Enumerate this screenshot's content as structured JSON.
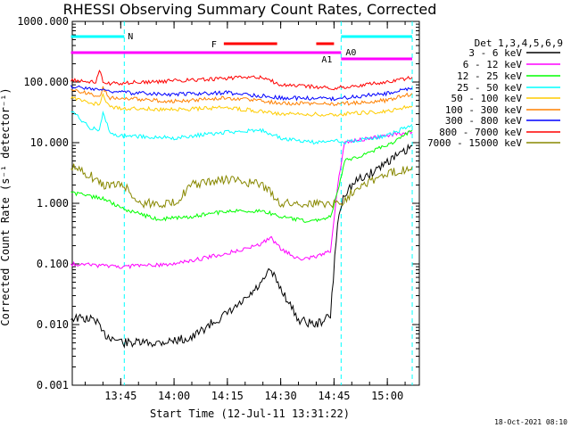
{
  "chart_data": {
    "type": "line",
    "title": "RHESSI Observing Summary Count Rates, Corrected",
    "xlabel": "Start Time (12-Jul-11 13:31:22)",
    "ylabel": "Corrected Count Rate (s⁻¹ detector⁻¹)",
    "ylim": [
      0.001,
      1000
    ],
    "y_scale": "log",
    "x_range": [
      "13:31:22",
      "15:09"
    ],
    "y_ticks": [
      "1000.000",
      "100.000",
      "10.000",
      "1.000",
      "0.100",
      "0.010",
      "0.001"
    ],
    "x_ticks": [
      "13:45",
      "14:00",
      "14:15",
      "14:30",
      "14:45",
      "15:00"
    ],
    "legend_title": "Det 1,3,4,5,6,9",
    "legend_position": "right",
    "series": [
      {
        "name": "3 - 6 keV",
        "color": "#000000",
        "x": [
          "13:31",
          "13:38",
          "13:40",
          "13:46",
          "13:55",
          "14:05",
          "14:10",
          "14:15",
          "14:20",
          "14:25",
          "14:27",
          "14:30",
          "14:35",
          "14:40",
          "14:44",
          "14:46",
          "14:48",
          "14:52",
          "14:55",
          "15:00",
          "15:05",
          "15:07"
        ],
        "values": [
          0.013,
          0.012,
          0.007,
          0.005,
          0.005,
          0.006,
          0.01,
          0.015,
          0.025,
          0.05,
          0.08,
          0.04,
          0.012,
          0.01,
          0.014,
          0.5,
          1.5,
          2.5,
          3,
          5,
          7,
          9
        ]
      },
      {
        "name": "6 - 12 keV",
        "color": "#ff00ff",
        "x": [
          "13:31",
          "13:45",
          "14:00",
          "14:10",
          "14:15",
          "14:20",
          "14:25",
          "14:27",
          "14:30",
          "14:35",
          "14:40",
          "14:44",
          "14:46",
          "14:48",
          "14:52",
          "15:00",
          "15:07"
        ],
        "values": [
          0.1,
          0.09,
          0.1,
          0.13,
          0.15,
          0.18,
          0.22,
          0.28,
          0.18,
          0.12,
          0.13,
          0.16,
          2,
          10,
          11,
          13,
          15
        ]
      },
      {
        "name": "12 - 25 keV",
        "color": "#00ff00",
        "x": [
          "13:31",
          "13:40",
          "13:46",
          "13:55",
          "14:05",
          "14:15",
          "14:25",
          "14:30",
          "14:38",
          "14:44",
          "14:46",
          "14:48",
          "14:52",
          "15:00",
          "15:07"
        ],
        "values": [
          1.5,
          1.2,
          0.8,
          0.55,
          0.6,
          0.75,
          0.75,
          0.6,
          0.5,
          0.6,
          1.5,
          5,
          6,
          9,
          16
        ]
      },
      {
        "name": "25 - 50 keV",
        "color": "#00ffff",
        "x": [
          "13:31",
          "13:36",
          "13:39",
          "13:40",
          "13:42",
          "13:45",
          "14:00",
          "14:15",
          "14:25",
          "14:30",
          "14:40",
          "14:45",
          "14:47",
          "15:00",
          "15:07"
        ],
        "values": [
          35,
          18,
          16,
          30,
          15,
          13,
          12,
          15,
          16,
          12,
          10,
          11,
          10,
          13,
          20
        ]
      },
      {
        "name": "50 - 100 keV",
        "color": "#ffcc00",
        "x": [
          "13:31",
          "13:39",
          "13:40",
          "13:42",
          "14:00",
          "14:15",
          "14:30",
          "14:45",
          "15:00",
          "15:07"
        ],
        "values": [
          55,
          42,
          60,
          38,
          35,
          38,
          30,
          29,
          33,
          40
        ]
      },
      {
        "name": "100 - 300 keV",
        "color": "#ff8000",
        "x": [
          "13:31",
          "13:39",
          "13:40",
          "13:42",
          "14:00",
          "14:15",
          "14:30",
          "14:45",
          "15:00",
          "15:07"
        ],
        "values": [
          75,
          58,
          80,
          55,
          48,
          55,
          45,
          43,
          50,
          65
        ]
      },
      {
        "name": "300 - 800 keV",
        "color": "#0000ff",
        "x": [
          "13:31",
          "13:45",
          "14:00",
          "14:15",
          "14:30",
          "14:45",
          "15:00",
          "15:07"
        ],
        "values": [
          85,
          67,
          62,
          67,
          55,
          53,
          65,
          80
        ]
      },
      {
        "name": "800 - 7000 keV",
        "color": "#ff0000",
        "x": [
          "13:31",
          "13:38",
          "13:39",
          "13:40",
          "13:42",
          "14:00",
          "14:15",
          "14:25",
          "14:30",
          "14:45",
          "15:00",
          "15:07"
        ],
        "values": [
          110,
          100,
          160,
          100,
          95,
          105,
          115,
          120,
          90,
          80,
          100,
          120
        ]
      },
      {
        "name": "7000 - 15000 keV",
        "color": "#888800",
        "x": [
          "13:31",
          "13:36",
          "13:40",
          "13:46",
          "13:50",
          "14:00",
          "14:05",
          "14:15",
          "14:25",
          "14:30",
          "14:38",
          "14:45",
          "14:47",
          "14:52",
          "15:00",
          "15:07"
        ],
        "values": [
          4,
          3,
          2,
          2,
          1,
          1,
          2,
          2.5,
          2,
          1,
          1,
          1,
          1,
          2,
          3,
          4
        ]
      }
    ],
    "flags": [
      {
        "label": "N",
        "color": "#00ffff",
        "x_start": "13:31",
        "x_end": "13:46",
        "level": "top"
      },
      {
        "label": "N",
        "color": "#00ffff",
        "x_start": "14:47",
        "x_end": "15:07",
        "level": "top"
      },
      {
        "label": "F",
        "color": "#ff0000",
        "x_start": "14:14",
        "x_end": "14:29",
        "level": "upper"
      },
      {
        "label": "F",
        "color": "#ff0000",
        "x_start": "14:40",
        "x_end": "14:45",
        "level": "upper"
      },
      {
        "label": "A1",
        "color": "#ff00ff",
        "x_start": "13:31",
        "x_end": "14:47",
        "level": "middle"
      },
      {
        "label": "A0",
        "color": "#ff00ff",
        "x_start": "14:47",
        "x_end": "15:07",
        "level": "lower"
      }
    ],
    "flag_text": {
      "N": "N",
      "F": "F",
      "A1": "A1",
      "A0": "A0"
    },
    "vertical_markers": [
      "13:46",
      "14:47",
      "15:07"
    ],
    "footer_date": "18-Oct-2021 08:10"
  }
}
